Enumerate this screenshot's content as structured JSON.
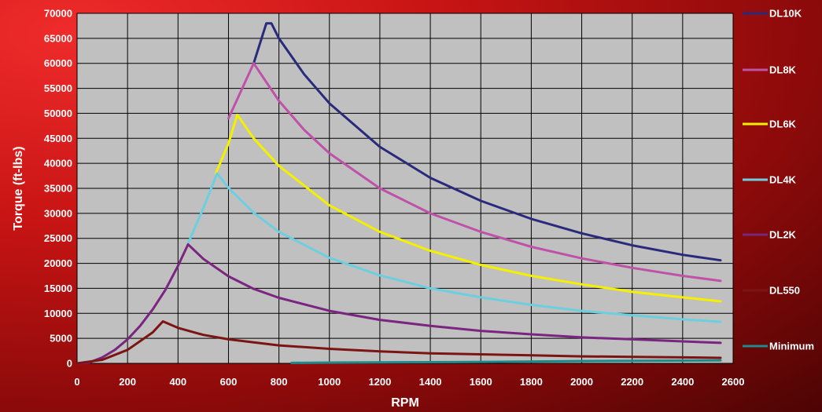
{
  "chart_data": {
    "type": "line",
    "xlabel": "RPM",
    "ylabel": "Torque (ft-lbs)",
    "xlim": [
      0,
      2600
    ],
    "ylim": [
      0,
      70000
    ],
    "xticks": [
      0,
      200,
      400,
      600,
      800,
      1000,
      1200,
      1400,
      1600,
      1800,
      2000,
      2200,
      2400,
      2600
    ],
    "yticks": [
      0,
      5000,
      10000,
      15000,
      20000,
      25000,
      30000,
      35000,
      40000,
      45000,
      50000,
      55000,
      60000,
      65000,
      70000
    ],
    "grid": true,
    "legend_position": "right",
    "plot_background": "#c0c0c0",
    "series": [
      {
        "name": "DL10K",
        "color": "#2a2a7c",
        "points": [
          [
            700,
            60000
          ],
          [
            750,
            68000
          ],
          [
            770,
            68000
          ],
          [
            800,
            65000
          ],
          [
            900,
            57800
          ],
          [
            1000,
            52000
          ],
          [
            1200,
            43300
          ],
          [
            1400,
            37100
          ],
          [
            1600,
            32500
          ],
          [
            1800,
            28900
          ],
          [
            2000,
            26000
          ],
          [
            2200,
            23600
          ],
          [
            2400,
            21700
          ],
          [
            2550,
            20600
          ]
        ]
      },
      {
        "name": "DL8K",
        "color": "#c051a9",
        "points": [
          [
            600,
            49000
          ],
          [
            650,
            54500
          ],
          [
            700,
            60000
          ],
          [
            800,
            52500
          ],
          [
            900,
            46700
          ],
          [
            1000,
            42000
          ],
          [
            1200,
            35000
          ],
          [
            1400,
            30000
          ],
          [
            1600,
            26300
          ],
          [
            1800,
            23300
          ],
          [
            2000,
            21000
          ],
          [
            2200,
            19100
          ],
          [
            2400,
            17500
          ],
          [
            2550,
            16500
          ]
        ]
      },
      {
        "name": "DL6K",
        "color": "#f4f000",
        "points": [
          [
            550,
            38000
          ],
          [
            600,
            44000
          ],
          [
            635,
            49700
          ],
          [
            700,
            45000
          ],
          [
            800,
            39500
          ],
          [
            1000,
            31600
          ],
          [
            1200,
            26300
          ],
          [
            1400,
            22500
          ],
          [
            1600,
            19700
          ],
          [
            1800,
            17500
          ],
          [
            2000,
            15800
          ],
          [
            2200,
            14300
          ],
          [
            2400,
            13200
          ],
          [
            2550,
            12400
          ]
        ]
      },
      {
        "name": "DL4K",
        "color": "#6ccfe0",
        "points": [
          [
            440,
            24000
          ],
          [
            500,
            31000
          ],
          [
            555,
            38000
          ],
          [
            600,
            35100
          ],
          [
            700,
            30100
          ],
          [
            800,
            26300
          ],
          [
            1000,
            21100
          ],
          [
            1200,
            17600
          ],
          [
            1400,
            15000
          ],
          [
            1600,
            13200
          ],
          [
            1800,
            11700
          ],
          [
            2000,
            10500
          ],
          [
            2200,
            9600
          ],
          [
            2400,
            8800
          ],
          [
            2550,
            8300
          ]
        ]
      },
      {
        "name": "DL2K",
        "color": "#7a2580",
        "points": [
          [
            0,
            0
          ],
          [
            50,
            200
          ],
          [
            100,
            1200
          ],
          [
            150,
            2700
          ],
          [
            200,
            4800
          ],
          [
            250,
            7500
          ],
          [
            300,
            10800
          ],
          [
            350,
            14700
          ],
          [
            400,
            19500
          ],
          [
            440,
            23800
          ],
          [
            500,
            20900
          ],
          [
            600,
            17400
          ],
          [
            700,
            14900
          ],
          [
            800,
            13100
          ],
          [
            1000,
            10500
          ],
          [
            1200,
            8700
          ],
          [
            1400,
            7500
          ],
          [
            1600,
            6500
          ],
          [
            1800,
            5800
          ],
          [
            2000,
            5200
          ],
          [
            2200,
            4800
          ],
          [
            2400,
            4400
          ],
          [
            2550,
            4100
          ]
        ]
      },
      {
        "name": "DL550",
        "color": "#7c1414",
        "points": [
          [
            0,
            0
          ],
          [
            100,
            700
          ],
          [
            200,
            2700
          ],
          [
            300,
            6200
          ],
          [
            340,
            8400
          ],
          [
            400,
            7100
          ],
          [
            500,
            5700
          ],
          [
            600,
            4800
          ],
          [
            800,
            3600
          ],
          [
            1000,
            2900
          ],
          [
            1200,
            2400
          ],
          [
            1400,
            2000
          ],
          [
            1600,
            1800
          ],
          [
            1800,
            1600
          ],
          [
            2000,
            1400
          ],
          [
            2200,
            1300
          ],
          [
            2400,
            1200
          ],
          [
            2550,
            1100
          ]
        ]
      },
      {
        "name": "Minimum",
        "color": "#1f8a8a",
        "points": [
          [
            850,
            100
          ],
          [
            1000,
            150
          ],
          [
            1500,
            250
          ],
          [
            2000,
            450
          ],
          [
            2550,
            600
          ]
        ]
      }
    ]
  }
}
